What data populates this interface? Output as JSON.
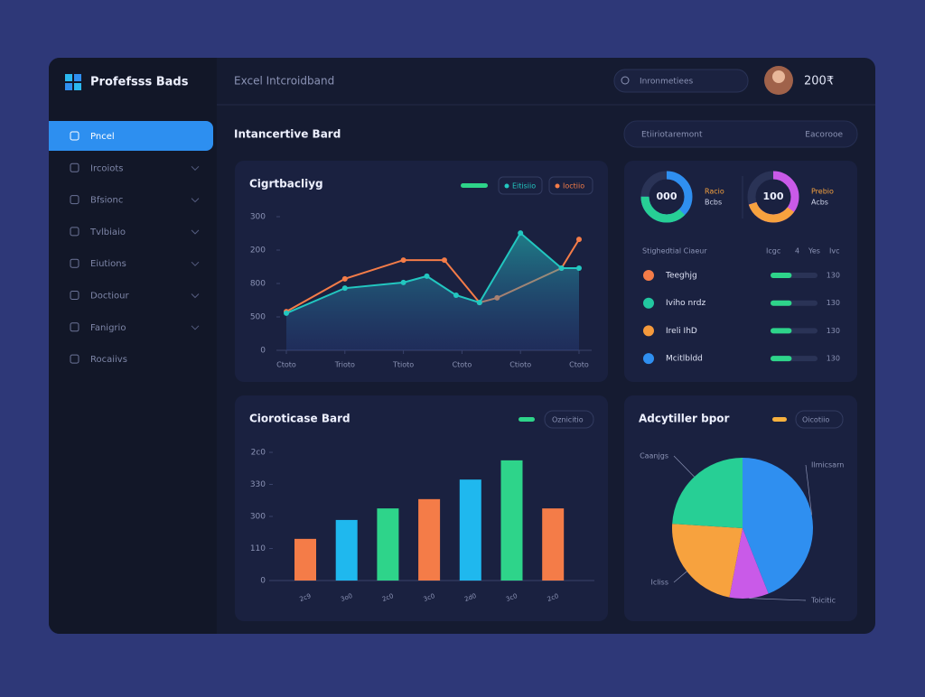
{
  "sidebar": {
    "brand": "Profefsss Bads",
    "items": [
      "Pncel",
      "Ircoiots",
      "Bfsionc",
      "Tvlbiaio",
      "Eiutions",
      "Doctiour",
      "Fanigrio",
      "Rocaiivs"
    ]
  },
  "header": {
    "title": "Excel Intcroidband",
    "search": "Inronmetiees",
    "user": "200₹"
  },
  "page_title": "Intancertive Bard",
  "filter": {
    "label": "Etiiriotaremont",
    "action": "Eacorooe"
  },
  "donuts": [
    {
      "value_label": "000",
      "progress": 75,
      "caption": [
        "Racio",
        "Bcbs"
      ]
    },
    {
      "value_label": "100",
      "progress": 70,
      "caption": [
        "Prebio",
        "Acbs"
      ]
    }
  ],
  "stats": {
    "header": [
      "Stighedtial Ciaeur",
      "Icgc",
      "4",
      "Yes",
      "Ivc"
    ],
    "rows": [
      {
        "label": "Teeghjg",
        "color": "#f47c48",
        "progress": 45,
        "value_label": "130"
      },
      {
        "label": "Iviho nrdz",
        "color": "#22c7a0",
        "progress": 45,
        "value_label": "130"
      },
      {
        "label": "Ireli IhD",
        "color": "#f59a3c",
        "progress": 45,
        "value_label": "130"
      },
      {
        "label": "Mcitlbldd",
        "color": "#2f8ff0",
        "progress": 45,
        "value_label": "130"
      }
    ]
  },
  "chart_data": [
    {
      "type": "line",
      "title": "Cigrtbacliyg",
      "xticks": [
        {
          "value": 0,
          "label": "Ctoto"
        },
        {
          "value": 1,
          "label": "Trioto"
        },
        {
          "value": 2,
          "label": "Ttioto"
        },
        {
          "value": 3,
          "label": "Ctoto"
        },
        {
          "value": 4,
          "label": "Ctioto"
        },
        {
          "value": 5,
          "label": "Ctoto"
        }
      ],
      "xlim": [
        0,
        5
      ],
      "ylim": [
        0,
        400
      ],
      "yticks": [
        0,
        {
          "value": 100,
          "label": "500"
        },
        {
          "value": 200,
          "label": "800"
        },
        {
          "value": 300,
          "label": "200"
        },
        {
          "value": 400,
          "label": "300"
        }
      ],
      "series": [
        {
          "name": "Ioctiio",
          "color": "#f47c48",
          "x": [
            0,
            1,
            2,
            2.7,
            3.3,
            3.6,
            4.7,
            5
          ],
          "values": [
            116,
            214,
            270,
            270,
            143,
            157,
            246,
            332
          ]
        },
        {
          "name": "Eitisiio",
          "color": "#22c7c0",
          "x": [
            0,
            1,
            2,
            2.4,
            2.9,
            3.3,
            4.0,
            4.7,
            5
          ],
          "values": [
            111,
            186,
            203,
            222,
            165,
            143,
            351,
            246,
            246
          ]
        }
      ]
    },
    {
      "type": "bar",
      "title": "Cioroticase Bard",
      "legend": "Oznicitio",
      "categories": [
        "2c9",
        "3o0",
        "2c0",
        "3c0",
        "2d0",
        "3c0",
        "2c0"
      ],
      "values": [
        130,
        189,
        225,
        254,
        315,
        375,
        225
      ],
      "colors": [
        "#f47c48",
        "#1fb8ee",
        "#2ed48a",
        "#f47c48",
        "#1fb8ee",
        "#2ed48a",
        "#f47c48"
      ],
      "ylim": [
        0,
        400
      ],
      "yticks": [
        0,
        {
          "value": 100,
          "label": "110"
        },
        {
          "value": 200,
          "label": "300"
        },
        {
          "value": 300,
          "label": "330"
        },
        {
          "value": 400,
          "label": "2c0"
        }
      ]
    },
    {
      "type": "pie",
      "title": "Adcytiller bpor",
      "legend": "Oicotiio",
      "categories": [
        "Ilmicsarn",
        "Toicitic",
        "Icliss",
        "Caanjgs"
      ],
      "values": [
        44,
        9,
        23,
        24
      ],
      "colors": [
        "#2f8ff0",
        "#c95ae8",
        "#f7a23e",
        "#27cf95"
      ]
    }
  ]
}
